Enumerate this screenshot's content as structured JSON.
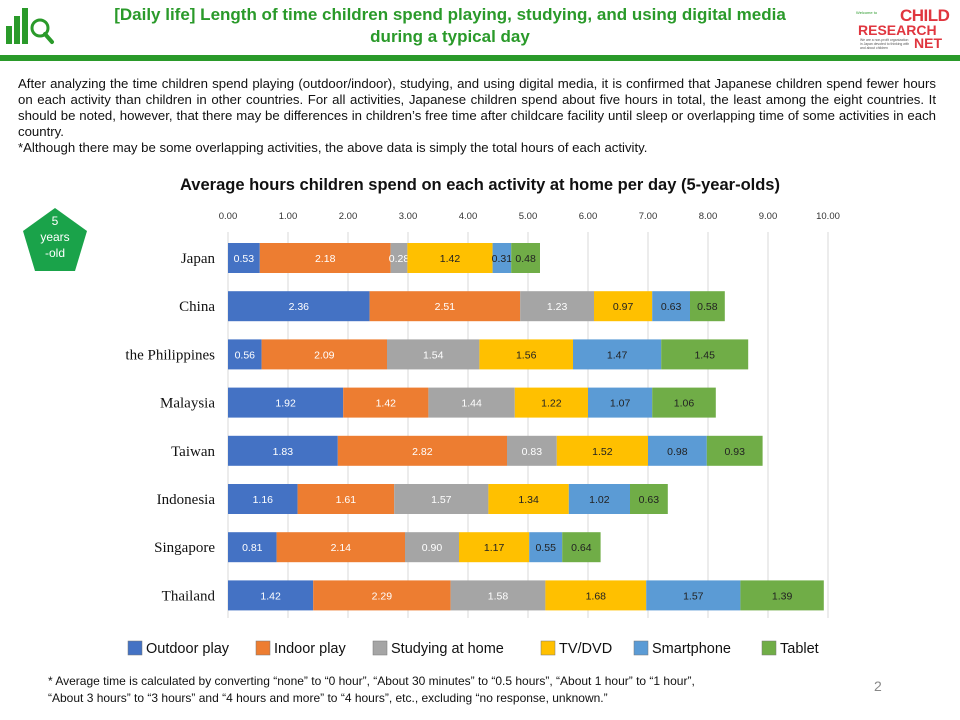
{
  "header": {
    "title_line1": "[Daily life] Length of time children spend playing, studying, and using digital media",
    "title_line2": "during a typical day",
    "brand": {
      "small": "Welcome to",
      "child": "CHILD",
      "research": "RESEARCH",
      "net": "NET",
      "tagline": "We are a non-profit organization in Japan devoted to thinking with and about children"
    },
    "accent_color": "#2a9a2a",
    "brand_color": "#e0363f"
  },
  "intro": {
    "paragraph": "After analyzing the time children spend playing (outdoor/indoor), studying, and using digital media, it is confirmed that Japanese children spend fewer hours on each activity than children in other countries. For all activities, Japanese children spend about five hours in total, the least among the eight countries. It should be noted, however, that there may be differences in children’s free time after childcare facility until sleep or overlapping time of some activities in each country.",
    "note": "*Although there may be some overlapping activities, the above data is simply the total hours of each activity."
  },
  "badge": {
    "line1": "5",
    "line2": "years",
    "line3": "-old",
    "color": "#1aa34a"
  },
  "chart_data": {
    "type": "bar",
    "orientation": "horizontal",
    "stacked": true,
    "title": "Average hours children spend on each activity at home per day (5-year-olds)",
    "categories": [
      "Japan",
      "China",
      "the Philippines",
      "Malaysia",
      "Taiwan",
      "Indonesia",
      "Singapore",
      "Thailand"
    ],
    "xlim": [
      0,
      10
    ],
    "xticks": [
      "0.00",
      "1.00",
      "2.00",
      "3.00",
      "4.00",
      "5.00",
      "6.00",
      "7.00",
      "8.00",
      "9.00",
      "10.00"
    ],
    "grid": true,
    "legend_position": "bottom",
    "series": [
      {
        "name": "Outdoor play",
        "color": "#4472c4",
        "label_color": "#ffffff",
        "values": [
          0.53,
          2.36,
          0.56,
          1.92,
          1.83,
          1.16,
          0.81,
          1.42
        ]
      },
      {
        "name": "Indoor play",
        "color": "#ed7d31",
        "label_color": "#ffffff",
        "values": [
          2.18,
          2.51,
          2.09,
          1.42,
          2.82,
          1.61,
          2.14,
          2.29
        ]
      },
      {
        "name": "Studying at home",
        "color": "#a5a5a5",
        "label_color": "#ffffff",
        "values": [
          0.28,
          1.23,
          1.54,
          1.44,
          0.83,
          1.57,
          0.9,
          1.58
        ]
      },
      {
        "name": "TV/DVD",
        "color": "#ffc000",
        "label_color": "#222222",
        "values": [
          1.42,
          0.97,
          1.56,
          1.22,
          1.52,
          1.34,
          1.17,
          1.68
        ]
      },
      {
        "name": "Smartphone",
        "color": "#5b9bd5",
        "label_color": "#222222",
        "values": [
          0.31,
          0.63,
          1.47,
          1.07,
          0.98,
          1.02,
          0.55,
          1.57
        ]
      },
      {
        "name": "Tablet",
        "color": "#70ad47",
        "label_color": "#222222",
        "values": [
          0.48,
          0.58,
          1.45,
          1.06,
          0.93,
          0.63,
          0.64,
          1.39
        ]
      }
    ]
  },
  "footnote": {
    "line1": "* Average time is calculated by converting “none” to “0 hour”, “About 30 minutes” to “0.5 hours”, “About 1 hour” to “1 hour”,",
    "line2": "“About 3 hours” to “3 hours” and “4 hours and more” to “4 hours”, etc., excluding “no response, unknown.”"
  },
  "page_number": "2"
}
